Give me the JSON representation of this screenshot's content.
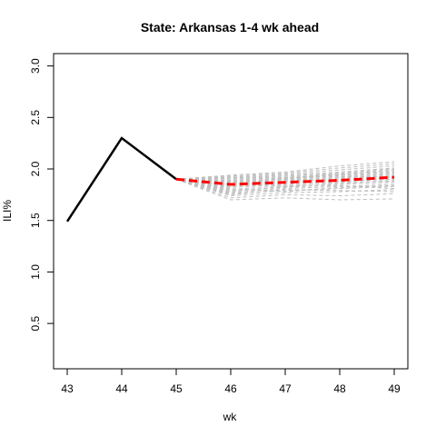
{
  "chart_data": {
    "type": "line",
    "title": "State: Arkansas 1-4 wk ahead",
    "xlabel": "wk",
    "ylabel": "ILI%",
    "xlim": [
      42.75,
      49.25
    ],
    "ylim": [
      0.06,
      3.12
    ],
    "x_ticks": [
      "43",
      "44",
      "45",
      "46",
      "47",
      "48",
      "49"
    ],
    "y_ticks": [
      "0.5",
      "1.0",
      "1.5",
      "2.0",
      "2.5",
      "3.0"
    ],
    "grid": false,
    "legend": "none",
    "observed": {
      "x": [
        43,
        44,
        45
      ],
      "y": [
        1.49,
        2.3,
        1.9
      ],
      "color": "#000000"
    },
    "forecast_mean": {
      "x": [
        45,
        46,
        47,
        48,
        49
      ],
      "y": [
        1.9,
        1.85,
        1.87,
        1.89,
        1.92
      ],
      "color": "#ff0000"
    },
    "forecast_samples": {
      "color": "#bebebe",
      "x": [
        45,
        46,
        47,
        48,
        49
      ],
      "trajectories": [
        [
          1.9,
          1.7,
          1.72,
          1.7,
          1.71
        ],
        [
          1.9,
          1.72,
          1.75,
          1.74,
          1.76
        ],
        [
          1.9,
          1.74,
          1.77,
          1.78,
          1.8
        ],
        [
          1.9,
          1.76,
          1.79,
          1.81,
          1.83
        ],
        [
          1.9,
          1.77,
          1.81,
          1.83,
          1.85
        ],
        [
          1.9,
          1.79,
          1.82,
          1.85,
          1.87
        ],
        [
          1.9,
          1.8,
          1.84,
          1.86,
          1.89
        ],
        [
          1.9,
          1.82,
          1.85,
          1.88,
          1.91
        ],
        [
          1.9,
          1.83,
          1.86,
          1.89,
          1.92
        ],
        [
          1.9,
          1.84,
          1.87,
          1.9,
          1.93
        ],
        [
          1.9,
          1.85,
          1.88,
          1.91,
          1.94
        ],
        [
          1.9,
          1.86,
          1.89,
          1.92,
          1.95
        ],
        [
          1.9,
          1.87,
          1.9,
          1.93,
          1.96
        ],
        [
          1.9,
          1.88,
          1.91,
          1.94,
          1.97
        ],
        [
          1.9,
          1.89,
          1.92,
          1.95,
          1.98
        ],
        [
          1.9,
          1.9,
          1.93,
          1.96,
          2.0
        ],
        [
          1.9,
          1.91,
          1.94,
          1.97,
          2.01
        ],
        [
          1.9,
          1.92,
          1.95,
          1.99,
          2.03
        ],
        [
          1.9,
          1.93,
          1.96,
          2.01,
          2.05
        ],
        [
          1.9,
          1.94,
          1.97,
          2.03,
          2.07
        ],
        [
          1.9,
          1.75,
          1.8,
          1.79,
          1.78
        ],
        [
          1.9,
          1.81,
          1.78,
          1.82,
          1.84
        ],
        [
          1.9,
          1.86,
          1.83,
          1.87,
          1.88
        ],
        [
          1.9,
          1.88,
          1.9,
          1.88,
          1.9
        ],
        [
          1.9,
          1.92,
          1.91,
          1.93,
          1.92
        ],
        [
          1.9,
          1.84,
          1.91,
          1.95,
          1.99
        ],
        [
          1.9,
          1.78,
          1.83,
          1.84,
          1.81
        ]
      ]
    }
  }
}
